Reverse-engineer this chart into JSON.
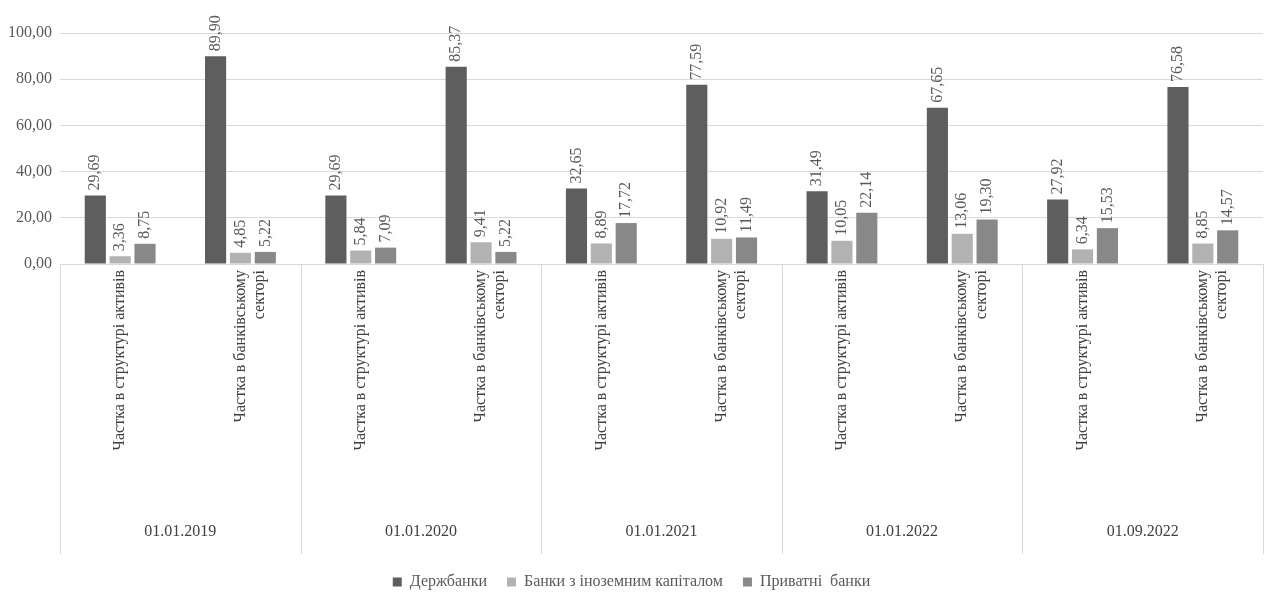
{
  "chart_data": {
    "type": "bar",
    "categories": [
      "Частка в структурі активів",
      "Частка в банківському секторі",
      "Частка в структурі активів",
      "Частка в банківському секторі",
      "Частка в структурі активів",
      "Частка в банківському секторі",
      "Частка в структурі активів",
      "Частка в банківському секторі",
      "Частка в структурі активів",
      "Частка в банківському секторі"
    ],
    "series": [
      {
        "name": "Держбанки",
        "color": "#5e5e5e",
        "values": [
          29.69,
          89.9,
          29.69,
          85.37,
          32.65,
          77.59,
          31.49,
          67.65,
          27.92,
          76.58
        ],
        "value_labels": [
          "29,69",
          "89,90",
          "29,69",
          "85,37",
          "32,65",
          "77,59",
          "31,49",
          "67,65",
          "27,92",
          "76,58"
        ]
      },
      {
        "name": "Банки з іноземним капіталом",
        "color": "#b2b2b2",
        "values": [
          3.36,
          4.85,
          5.84,
          9.41,
          8.89,
          10.92,
          10.05,
          13.06,
          6.34,
          8.85
        ],
        "value_labels": [
          "3,36",
          "4,85",
          "5,84",
          "9,41",
          "8,89",
          "10,92",
          "10,05",
          "13,06",
          "6,34",
          "8,85"
        ]
      },
      {
        "name": "Приватні  банки",
        "color": "#888888",
        "values": [
          8.75,
          5.22,
          7.09,
          5.22,
          17.72,
          11.49,
          22.14,
          19.3,
          15.53,
          14.57
        ],
        "value_labels": [
          "8,75",
          "5,22",
          "7,09",
          "5,22",
          "17,72",
          "11,49",
          "22,14",
          "19,30",
          "15,53",
          "14,57"
        ]
      }
    ],
    "annotations": [
      "01.01.2019",
      "01.01.2020",
      "01.01.2021",
      "01.01.2022",
      "01.09.2022"
    ],
    "ylim": [
      0,
      100
    ],
    "yticks": [
      {
        "value": 0,
        "label": "0,00"
      },
      {
        "value": 20,
        "label": "20,00"
      },
      {
        "value": 40,
        "label": "40,00"
      },
      {
        "value": 60,
        "label": "60,00"
      },
      {
        "value": 80,
        "label": "80,00"
      },
      {
        "value": 100,
        "label": "100,00"
      }
    ],
    "grid": "y",
    "legend": "bottom"
  }
}
